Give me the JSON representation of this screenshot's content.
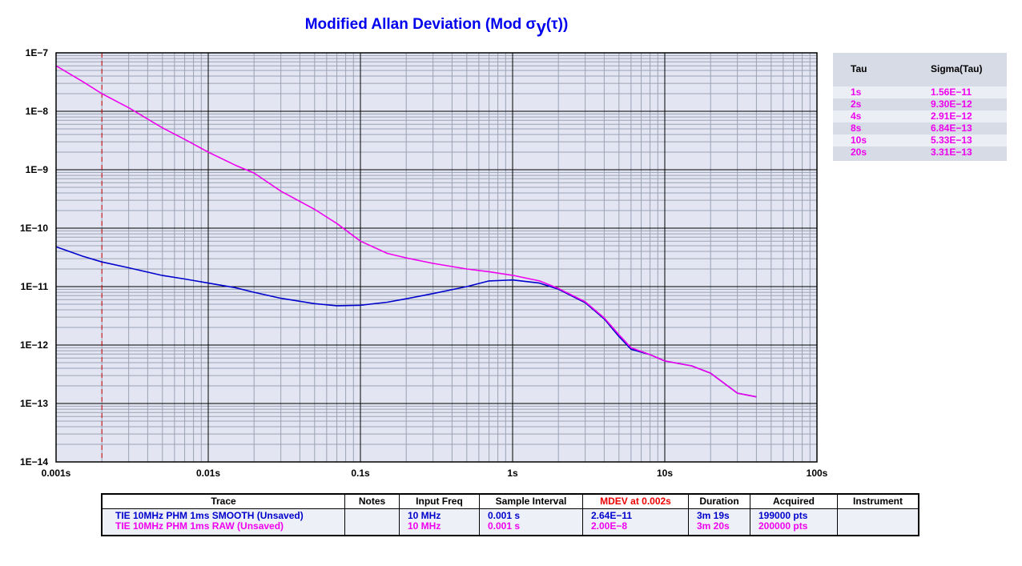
{
  "title": {
    "main": "Modified Allan Deviation (Mod σ",
    "sub": "y",
    "tail": "(τ))"
  },
  "colors": {
    "plot_bg": "#e3e6f2",
    "grid": "#9aa2b4",
    "grid_major": "#000000",
    "smooth": "#0000cc",
    "raw": "#ee00ee",
    "marker": "#cc0000",
    "title": "#0000ee"
  },
  "chart_data": {
    "type": "line",
    "x_scale": "log",
    "y_scale": "log",
    "xlim": [
      0.001,
      100
    ],
    "ylim": [
      1e-14,
      1e-07
    ],
    "x_ticks": [
      {
        "v": 0.001,
        "label": "0.001s"
      },
      {
        "v": 0.01,
        "label": "0.01s"
      },
      {
        "v": 0.1,
        "label": "0.1s"
      },
      {
        "v": 1,
        "label": "1s"
      },
      {
        "v": 10,
        "label": "10s"
      },
      {
        "v": 100,
        "label": "100s"
      }
    ],
    "y_ticks": [
      {
        "v": 1e-07,
        "label": "1E−7"
      },
      {
        "v": 1e-08,
        "label": "1E−8"
      },
      {
        "v": 1e-09,
        "label": "1E−9"
      },
      {
        "v": 1e-10,
        "label": "1E−10"
      },
      {
        "v": 1e-11,
        "label": "1E−11"
      },
      {
        "v": 1e-12,
        "label": "1E−12"
      },
      {
        "v": 1e-13,
        "label": "1E−13"
      },
      {
        "v": 1e-14,
        "label": "1E−14"
      }
    ],
    "marker_x": 0.002,
    "grid": true,
    "series": [
      {
        "name": "TIE 10MHz PHM 1ms SMOOTH (Unsaved)",
        "color": "#0000cc",
        "points": [
          [
            0.001,
            4.8e-11
          ],
          [
            0.0015,
            3.3e-11
          ],
          [
            0.002,
            2.64e-11
          ],
          [
            0.003,
            2.1e-11
          ],
          [
            0.005,
            1.55e-11
          ],
          [
            0.007,
            1.35e-11
          ],
          [
            0.01,
            1.15e-11
          ],
          [
            0.015,
            9.6e-12
          ],
          [
            0.02,
            8e-12
          ],
          [
            0.03,
            6.3e-12
          ],
          [
            0.05,
            5.1e-12
          ],
          [
            0.07,
            4.7e-12
          ],
          [
            0.1,
            4.8e-12
          ],
          [
            0.15,
            5.4e-12
          ],
          [
            0.2,
            6.2e-12
          ],
          [
            0.3,
            7.6e-12
          ],
          [
            0.5,
            1e-11
          ],
          [
            0.7,
            1.25e-11
          ],
          [
            1.0,
            1.3e-11
          ],
          [
            1.5,
            1.15e-11
          ],
          [
            2.0,
            9e-12
          ],
          [
            3.0,
            5.3e-12
          ],
          [
            4.0,
            2.8e-12
          ],
          [
            5.0,
            1.4e-12
          ],
          [
            6.0,
            8.5e-13
          ],
          [
            8.0,
            6.84e-13
          ],
          [
            10.0,
            5.33e-13
          ],
          [
            15.0,
            4.4e-13
          ],
          [
            20.0,
            3.31e-13
          ],
          [
            30.0,
            1.5e-13
          ],
          [
            40.0,
            1.3e-13
          ]
        ]
      },
      {
        "name": "TIE 10MHz PHM 1ms RAW (Unsaved)",
        "color": "#ee00ee",
        "points": [
          [
            0.001,
            6e-08
          ],
          [
            0.0015,
            3.2e-08
          ],
          [
            0.002,
            2e-08
          ],
          [
            0.003,
            1.15e-08
          ],
          [
            0.005,
            5.2e-09
          ],
          [
            0.007,
            3.3e-09
          ],
          [
            0.01,
            2e-09
          ],
          [
            0.015,
            1.2e-09
          ],
          [
            0.02,
            8.8e-10
          ],
          [
            0.03,
            4.3e-10
          ],
          [
            0.05,
            2.1e-10
          ],
          [
            0.07,
            1.2e-10
          ],
          [
            0.1,
            6e-11
          ],
          [
            0.15,
            3.7e-11
          ],
          [
            0.2,
            3.1e-11
          ],
          [
            0.3,
            2.5e-11
          ],
          [
            0.5,
            2e-11
          ],
          [
            0.7,
            1.8e-11
          ],
          [
            1.0,
            1.56e-11
          ],
          [
            1.5,
            1.25e-11
          ],
          [
            2.0,
            9.3e-12
          ],
          [
            3.0,
            5.5e-12
          ],
          [
            4.0,
            2.91e-12
          ],
          [
            5.0,
            1.5e-12
          ],
          [
            6.0,
            9e-13
          ],
          [
            8.0,
            6.84e-13
          ],
          [
            10.0,
            5.33e-13
          ],
          [
            15.0,
            4.4e-13
          ],
          [
            20.0,
            3.31e-13
          ],
          [
            30.0,
            1.5e-13
          ],
          [
            40.0,
            1.3e-13
          ]
        ]
      }
    ]
  },
  "tau_table": {
    "headers": [
      "Tau",
      "Sigma(Tau)"
    ],
    "rows": [
      {
        "tau": "1s",
        "sigma": "1.56E−11"
      },
      {
        "tau": "2s",
        "sigma": "9.30E−12"
      },
      {
        "tau": "4s",
        "sigma": "2.91E−12"
      },
      {
        "tau": "8s",
        "sigma": "6.84E−13"
      },
      {
        "tau": "10s",
        "sigma": "5.33E−13"
      },
      {
        "tau": "20s",
        "sigma": "3.31E−13"
      }
    ]
  },
  "legend": {
    "headers": [
      "Trace",
      "Notes",
      "Input Freq",
      "Sample Interval",
      "MDEV at 0.002s",
      "Duration",
      "Acquired",
      "Instrument"
    ],
    "rows": [
      [
        "TIE 10MHz  PHM 1ms SMOOTH (Unsaved)",
        "",
        "10 MHz",
        "0.001 s",
        "2.64E−11",
        "3m 19s",
        "199000 pts",
        ""
      ],
      [
        "TIE 10MHz  PHM 1ms RAW (Unsaved)",
        "",
        "10 MHz",
        "0.001 s",
        "2.00E−8",
        "3m 20s",
        "200000 pts",
        ""
      ]
    ]
  }
}
